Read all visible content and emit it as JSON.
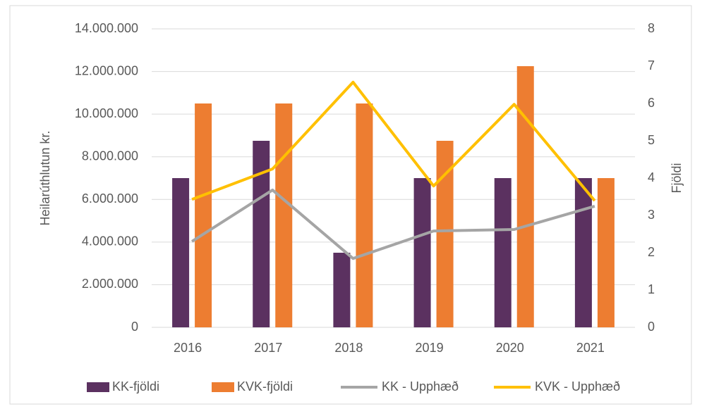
{
  "chart_data": {
    "type": "bar",
    "categories": [
      "2016",
      "2017",
      "2018",
      "2019",
      "2020",
      "2021"
    ],
    "ylabel": "Heilarúthlutun kr.",
    "y2label": "Fjöldi",
    "ylim": [
      0,
      14000000
    ],
    "yticks": [
      0,
      {
        "value": 2000000,
        "label": "2.000.000"
      },
      {
        "value": 4000000,
        "label": "4.000.000"
      },
      {
        "value": 6000000,
        "label": "6.000.000"
      },
      {
        "value": 8000000,
        "label": "8.000.000"
      },
      {
        "value": 10000000,
        "label": "10.000.000"
      },
      {
        "value": 12000000,
        "label": "12.000.000"
      },
      {
        "value": 14000000,
        "label": "14.000.000"
      }
    ],
    "y2lim": [
      0,
      8
    ],
    "y2ticks": [
      0,
      1,
      2,
      3,
      4,
      5,
      6,
      7,
      8
    ],
    "grid": true,
    "legend": "bottom",
    "series": [
      {
        "name": "KK-fjöldi",
        "type": "bar",
        "axis": "y2",
        "color": "#5b3160",
        "values": [
          4,
          5,
          2,
          4,
          4,
          4
        ]
      },
      {
        "name": "KVK-fjöldi",
        "type": "bar",
        "axis": "y2",
        "color": "#ed7d31",
        "values": [
          6,
          6,
          6,
          5,
          7,
          4
        ]
      },
      {
        "name": "KK - Upphæð",
        "type": "line",
        "color": "#a5a5a5",
        "values": [
          4030000,
          6440000,
          3230000,
          4520000,
          4590000,
          5680000
        ]
      },
      {
        "name": "KVK - Upphæð",
        "type": "line",
        "color": "#ffc000",
        "values": [
          6000000,
          7430000,
          11500000,
          6630000,
          10460000,
          5940000
        ]
      }
    ]
  }
}
